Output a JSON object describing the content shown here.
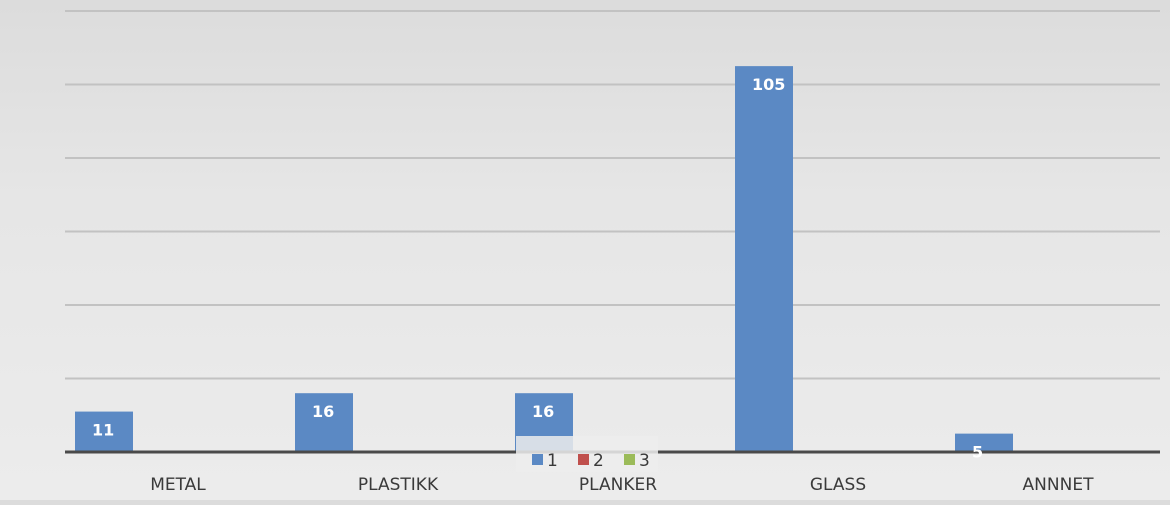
{
  "chart_data": {
    "type": "bar",
    "categories": [
      "METAL",
      "PLASTIKK",
      "PLANKER",
      "GLASS",
      "ANNNET"
    ],
    "series": [
      {
        "name": "1",
        "values": [
          11,
          16,
          16,
          105,
          5
        ],
        "color": "#5b89c4"
      },
      {
        "name": "2",
        "values": [
          null,
          null,
          null,
          null,
          null
        ],
        "color": "#c0504d"
      },
      {
        "name": "3",
        "values": [
          null,
          null,
          null,
          null,
          null
        ],
        "color": "#9bbb59"
      }
    ],
    "data_labels": [
      "11",
      "16",
      "16",
      "105",
      "5"
    ],
    "ylim": [
      0,
      120
    ],
    "grid": true,
    "legend_position": "bottom-center",
    "colors": {
      "gridline": "#c2c2c2",
      "axis": "#4a4a4a"
    }
  }
}
